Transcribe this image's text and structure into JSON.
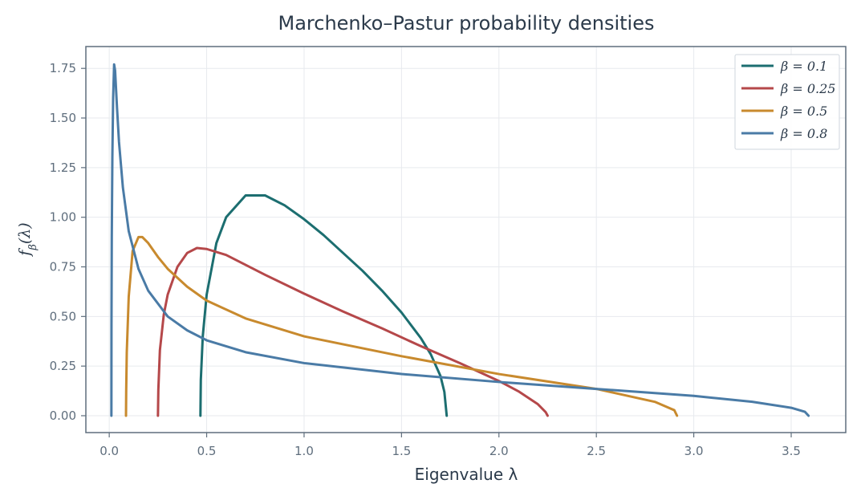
{
  "chart_data": {
    "type": "line",
    "title": "Marchenko–Pastur probability densities",
    "xlabel": "Eigenvalue λ",
    "ylabel": "fβ(λ)",
    "xlim": [
      -0.12,
      3.78
    ],
    "ylim": [
      -0.085,
      1.86
    ],
    "xticks": [
      0.0,
      0.5,
      1.0,
      1.5,
      2.0,
      2.5,
      3.0,
      3.5
    ],
    "xtick_labels": [
      "0.0",
      "0.5",
      "1.0",
      "1.5",
      "2.0",
      "2.5",
      "3.0",
      "3.5"
    ],
    "yticks": [
      0.0,
      0.25,
      0.5,
      0.75,
      1.0,
      1.25,
      1.5,
      1.75
    ],
    "ytick_labels": [
      "0.00",
      "0.25",
      "0.50",
      "0.75",
      "1.00",
      "1.25",
      "1.50",
      "1.75"
    ],
    "grid": true,
    "legend_position": "top-right",
    "series": [
      {
        "name": "β = 0.1",
        "color": "#1c6e70",
        "x": [
          0.468,
          0.47,
          0.48,
          0.5,
          0.55,
          0.6,
          0.7,
          0.8,
          0.9,
          1.0,
          1.1,
          1.2,
          1.3,
          1.4,
          1.5,
          1.6,
          1.65,
          1.7,
          1.72,
          1.732
        ],
        "y": [
          0.0,
          0.18,
          0.4,
          0.61,
          0.87,
          1.0,
          1.11,
          1.11,
          1.06,
          0.99,
          0.91,
          0.82,
          0.73,
          0.63,
          0.52,
          0.39,
          0.31,
          0.2,
          0.12,
          0.0
        ]
      },
      {
        "name": "β = 0.25",
        "color": "#b5484a",
        "x": [
          0.25,
          0.252,
          0.26,
          0.28,
          0.3,
          0.35,
          0.4,
          0.45,
          0.5,
          0.6,
          0.7,
          0.8,
          1.0,
          1.2,
          1.4,
          1.6,
          1.8,
          2.0,
          2.1,
          2.2,
          2.24,
          2.25
        ],
        "y": [
          0.0,
          0.13,
          0.33,
          0.51,
          0.61,
          0.75,
          0.82,
          0.845,
          0.84,
          0.81,
          0.76,
          0.71,
          0.615,
          0.525,
          0.44,
          0.35,
          0.265,
          0.175,
          0.123,
          0.058,
          0.018,
          0.0
        ]
      },
      {
        "name": "β = 0.5",
        "color": "#c88a2e",
        "x": [
          0.086,
          0.087,
          0.09,
          0.1,
          0.12,
          0.15,
          0.17,
          0.2,
          0.25,
          0.3,
          0.4,
          0.5,
          0.7,
          1.0,
          1.5,
          2.0,
          2.5,
          2.8,
          2.9,
          2.914
        ],
        "y": [
          0.0,
          0.12,
          0.32,
          0.6,
          0.83,
          0.9,
          0.9,
          0.87,
          0.8,
          0.74,
          0.65,
          0.58,
          0.49,
          0.4,
          0.3,
          0.21,
          0.135,
          0.07,
          0.028,
          0.0
        ]
      },
      {
        "name": "β = 0.8",
        "color": "#4a7ba6",
        "x": [
          0.0111,
          0.0115,
          0.013,
          0.016,
          0.02,
          0.025,
          0.03,
          0.04,
          0.05,
          0.07,
          0.1,
          0.15,
          0.2,
          0.3,
          0.4,
          0.5,
          0.7,
          1.0,
          1.5,
          2.0,
          2.5,
          3.0,
          3.3,
          3.5,
          3.57,
          3.589
        ],
        "y": [
          0.0,
          0.45,
          0.9,
          1.3,
          1.6,
          1.77,
          1.74,
          1.55,
          1.38,
          1.15,
          0.93,
          0.74,
          0.63,
          0.5,
          0.43,
          0.38,
          0.32,
          0.265,
          0.21,
          0.17,
          0.135,
          0.1,
          0.07,
          0.04,
          0.02,
          0.0
        ]
      }
    ]
  }
}
